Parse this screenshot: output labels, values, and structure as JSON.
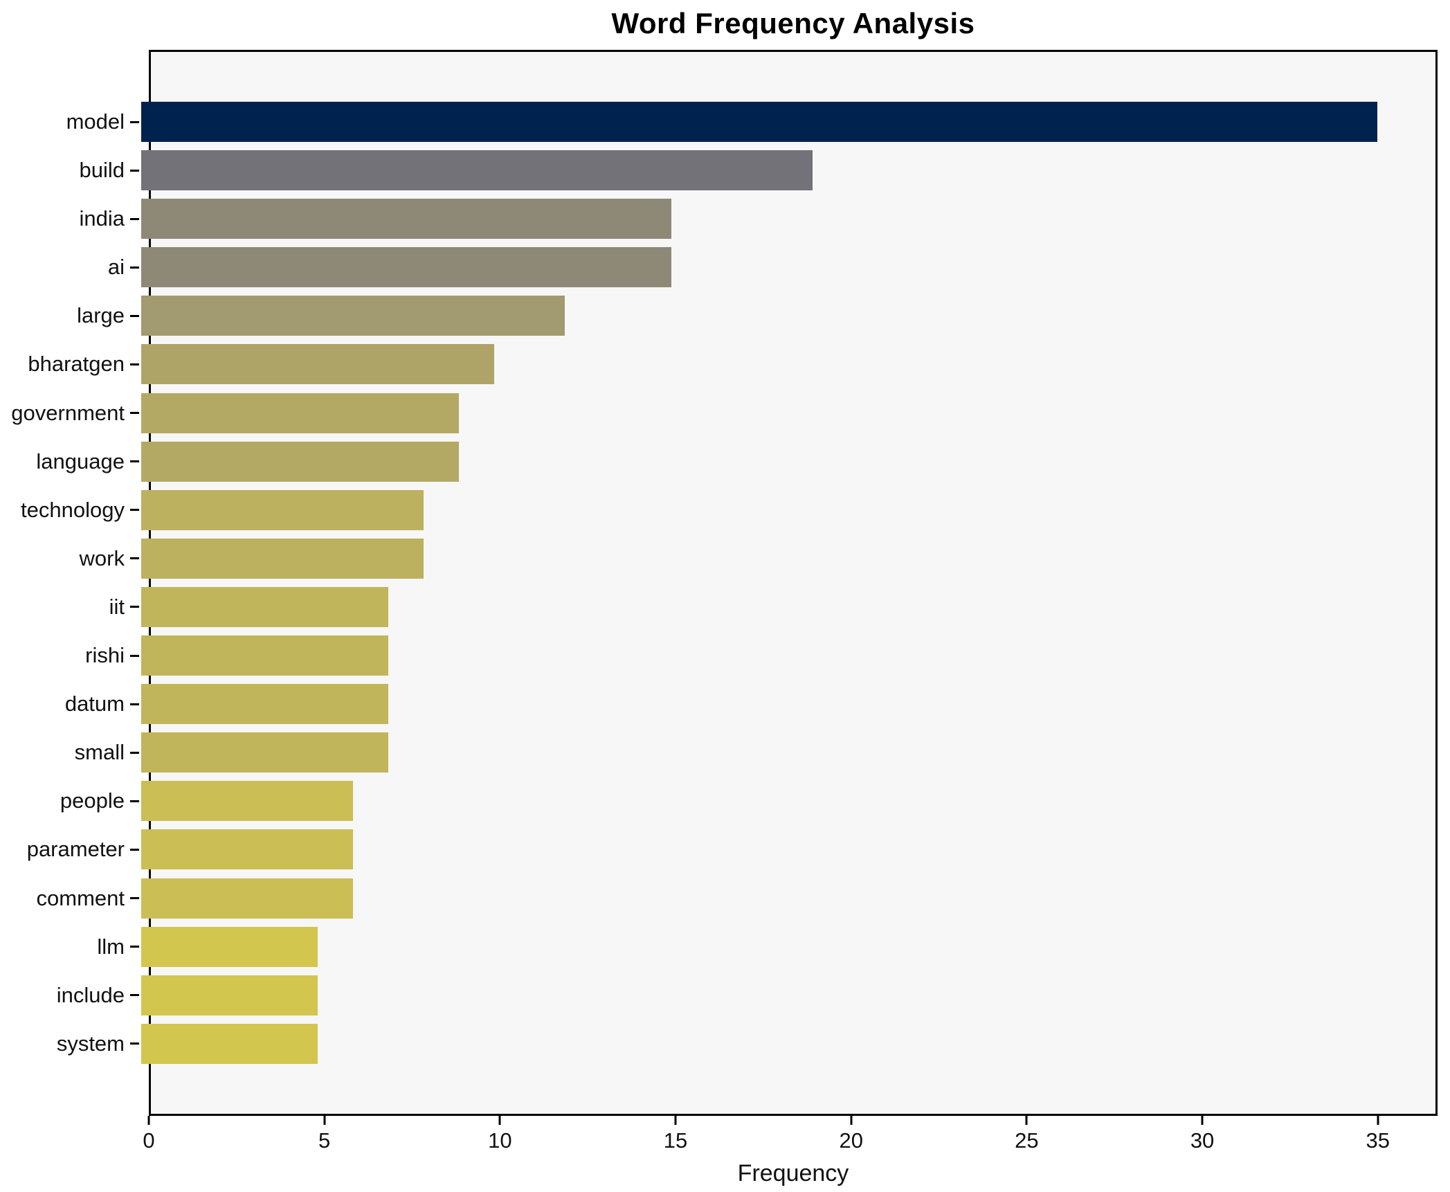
{
  "chart_data": {
    "type": "bar",
    "orientation": "horizontal",
    "title": "Word Frequency Analysis",
    "xlabel": "Frequency",
    "ylabel": "",
    "categories": [
      "model",
      "build",
      "india",
      "ai",
      "large",
      "bharatgen",
      "government",
      "language",
      "technology",
      "work",
      "iit",
      "rishi",
      "datum",
      "small",
      "people",
      "parameter",
      "comment",
      "llm",
      "include",
      "system"
    ],
    "values": [
      35,
      19,
      15,
      15,
      12,
      10,
      9,
      9,
      8,
      8,
      7,
      7,
      7,
      7,
      6,
      6,
      6,
      5,
      5,
      5
    ],
    "bar_colors": [
      "#00224E",
      "#727278",
      "#8E8876",
      "#8E8876",
      "#A29A70",
      "#AEA467",
      "#B4A964",
      "#B4A964",
      "#BCB15F",
      "#BCB15F",
      "#C1B55C",
      "#C1B55C",
      "#C1B55C",
      "#C1B55C",
      "#CBBE55",
      "#CBBE55",
      "#CBBE55",
      "#D3C64E",
      "#D3C64E",
      "#D3C64E"
    ],
    "xlim": [
      0,
      36.7
    ],
    "x_ticks": [
      0,
      5,
      10,
      15,
      20,
      25,
      30,
      35
    ],
    "grid": false,
    "legend": null,
    "plot_bg": "#f7f7f7",
    "figure_bg": "#ffffff",
    "spine_color": "#000000"
  }
}
